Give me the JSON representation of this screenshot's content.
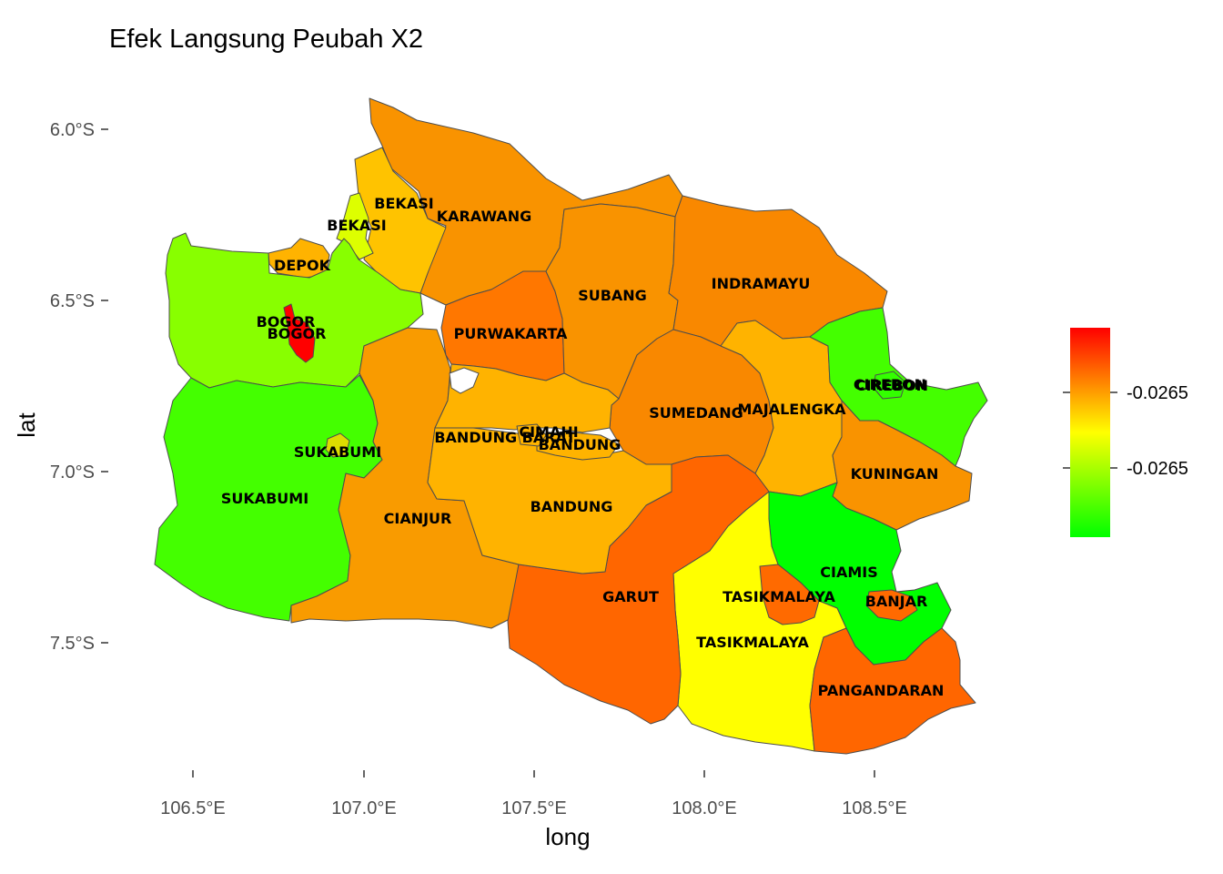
{
  "title": "Efek Langsung Peubah X2",
  "axes": {
    "x_title": "long",
    "y_title": "lat",
    "x_ticks": [
      "106.5°E",
      "107.0°E",
      "107.5°E",
      "108.0°E",
      "108.5°E"
    ],
    "y_ticks": [
      "6.0°S",
      "6.5°S",
      "7.0°S",
      "7.5°S"
    ]
  },
  "legend": {
    "labels": [
      "-0.0265",
      "-0.0265"
    ],
    "low_color": "#00ff00",
    "mid_color": "#ffff00",
    "high_color": "#ff0000"
  },
  "chart_data": {
    "type": "map",
    "title": "Efek Langsung Peubah X2",
    "xlabel": "long",
    "ylabel": "lat",
    "xlim": [
      106.45,
      108.85
    ],
    "ylim": [
      -7.8,
      -5.9
    ],
    "regions": [
      {
        "name": "BOGOR",
        "id": "bogor-kab",
        "color": "#88ff00"
      },
      {
        "name": "BOGOR",
        "id": "bogor-kota",
        "color": "#ff0000"
      },
      {
        "name": "SUKABUMI",
        "id": "sukabumi-kab",
        "color": "#44ff00"
      },
      {
        "name": "SUKABUMI",
        "id": "sukabumi-kota",
        "color": "#dddd00"
      },
      {
        "name": "CIANJUR",
        "id": "cianjur",
        "color": "#f99b00"
      },
      {
        "name": "BANDUNG",
        "id": "bandung-kab",
        "color": "#ffb300"
      },
      {
        "name": "BANDUNG BARAT",
        "id": "bandung-barat",
        "color": "#ffb300"
      },
      {
        "name": "BANDUNG",
        "id": "bandung-kota",
        "color": "#ffb300"
      },
      {
        "name": "CIMAHI",
        "id": "cimahi",
        "color": "#ffb300"
      },
      {
        "name": "GARUT",
        "id": "garut",
        "color": "#ff6600"
      },
      {
        "name": "TASIKMALAYA",
        "id": "tasik-kab",
        "color": "#ffff00"
      },
      {
        "name": "TASIKMALAYA",
        "id": "tasik-kota",
        "color": "#ff6a00"
      },
      {
        "name": "CIAMIS",
        "id": "ciamis",
        "color": "#00ff00"
      },
      {
        "name": "BANJAR",
        "id": "banjar",
        "color": "#ff6a00"
      },
      {
        "name": "PANGANDARAN",
        "id": "pangandaran",
        "color": "#ff6600"
      },
      {
        "name": "KUNINGAN",
        "id": "kuningan",
        "color": "#f99300"
      },
      {
        "name": "CIREBON",
        "id": "cirebon-kab",
        "color": "#44ff00"
      },
      {
        "name": "CIREBON",
        "id": "cirebon-kota",
        "color": "#33ff00"
      },
      {
        "name": "MAJALENGKA",
        "id": "majalengka",
        "color": "#ffb300"
      },
      {
        "name": "SUMEDANG",
        "id": "sumedang",
        "color": "#f98800"
      },
      {
        "name": "INDRAMAYU",
        "id": "indramayu",
        "color": "#f98800"
      },
      {
        "name": "SUBANG",
        "id": "subang",
        "color": "#f99300"
      },
      {
        "name": "PURWAKARTA",
        "id": "purwakarta",
        "color": "#ff7700"
      },
      {
        "name": "KARAWANG",
        "id": "karawang",
        "color": "#f99300"
      },
      {
        "name": "BEKASI",
        "id": "bekasi-kab",
        "color": "#ffc300"
      },
      {
        "name": "BEKASI",
        "id": "bekasi-kota",
        "color": "#ddff00"
      },
      {
        "name": "DEPOK",
        "id": "depok",
        "color": "#ffb300"
      }
    ]
  }
}
